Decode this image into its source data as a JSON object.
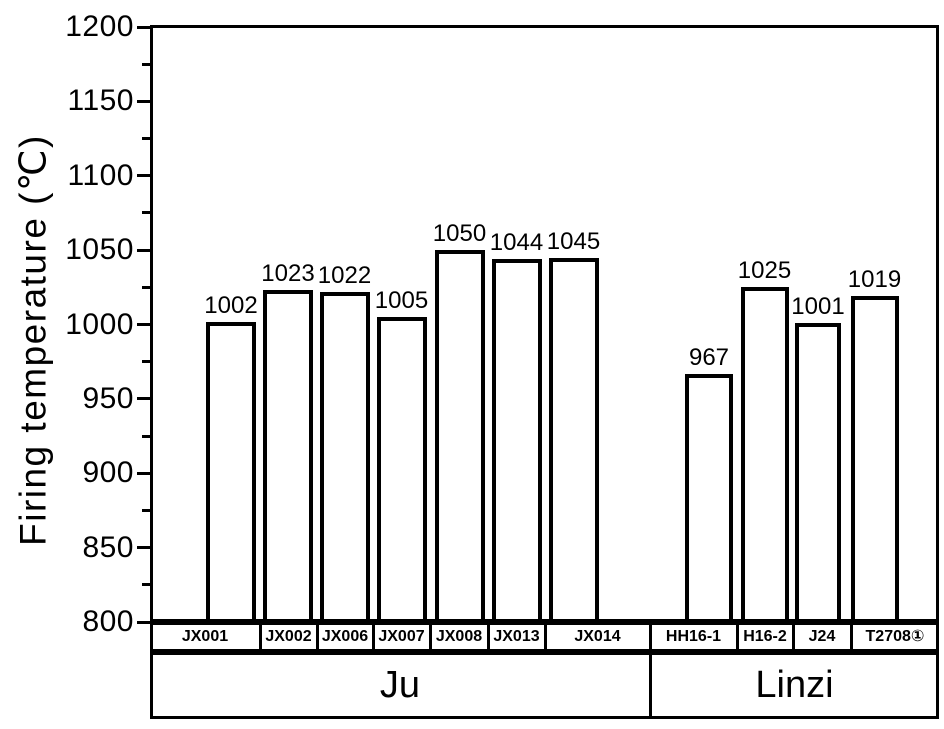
{
  "colors": {
    "ink": "#000000",
    "background": "#ffffff",
    "bar_fill": "#ffffff",
    "bar_outline": "#000000"
  },
  "chart_data": {
    "type": "bar",
    "title": "",
    "xlabel": "",
    "ylabel": "Firing temperature (℃)",
    "ylim": [
      800,
      1200
    ],
    "y_major_ticks": [
      800,
      850,
      900,
      950,
      1000,
      1050,
      1100,
      1150,
      1200
    ],
    "y_minor_ticks": [
      825,
      875,
      925,
      975,
      1025,
      1075,
      1125,
      1175
    ],
    "grid": false,
    "legend": "none",
    "bar_style": "white fill, thick black outline, value labels above bars",
    "categories": [
      "JX001",
      "JX002",
      "JX006",
      "JX007",
      "JX008",
      "JX013",
      "JX014",
      "HH16-1",
      "H16-2",
      "J24",
      "T2708①"
    ],
    "values": [
      1002,
      1023,
      1022,
      1005,
      1050,
      1044,
      1045,
      967,
      1025,
      1001,
      1019
    ],
    "groups": [
      {
        "label": "Ju",
        "category_span": [
          0,
          6
        ]
      },
      {
        "label": "Linzi",
        "category_span": [
          7,
          10
        ]
      }
    ]
  }
}
